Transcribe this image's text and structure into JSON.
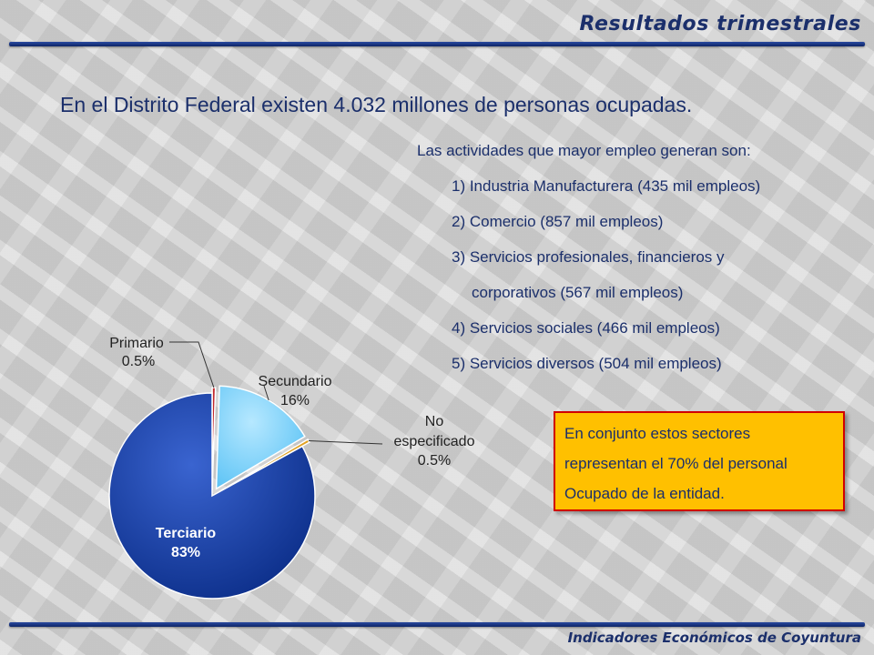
{
  "header": {
    "title": "Resultados trimestrales"
  },
  "headline": "En el Distrito Federal existen 4.032 millones de personas ocupadas.",
  "activities": {
    "intro": "Las actividades que mayor empleo generan son:",
    "items": [
      "1) Industria Manufacturera (435 mil empleos)",
      "2) Comercio (857 mil empleos)",
      "3) Servicios profesionales, financieros y",
      "corporativos (567 mil empleos)",
      "4) Servicios sociales (466 mil empleos)",
      "5) Servicios diversos (504 mil empleos)"
    ]
  },
  "callout": {
    "lines": [
      "En conjunto estos sectores",
      "representan el 70% del personal",
      "Ocupado de la entidad."
    ]
  },
  "footer": {
    "text": "Indicadores Económicos de Coyuntura"
  },
  "chart_data": {
    "type": "pie",
    "title": "",
    "slices": [
      {
        "label": "Primario",
        "value": 0.5,
        "value_label": "0.5%",
        "color": "#c0282d"
      },
      {
        "label": "Secundario",
        "value": 16,
        "value_label": "16%",
        "color": "#7fd3ff"
      },
      {
        "label": "No especificado",
        "value": 0.5,
        "value_label": "0.5%",
        "color": "#e0a020"
      },
      {
        "label": "Terciario",
        "value": 83,
        "value_label": "83%",
        "color": "#0c3aa8"
      }
    ],
    "exploded": [
      "Primario",
      "Secundario",
      "No especificado"
    ]
  }
}
